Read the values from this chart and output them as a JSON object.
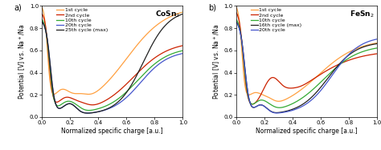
{
  "panel_a": {
    "title": "CoSn$_2$",
    "label": "a)",
    "curves": [
      {
        "name": "1st cycle",
        "color": "#FFA040",
        "lw": 0.9
      },
      {
        "name": "2nd cycle",
        "color": "#CC2200",
        "lw": 0.9
      },
      {
        "name": "10th cycle",
        "color": "#33AA33",
        "lw": 0.9
      },
      {
        "name": "20th cycle",
        "color": "#4455CC",
        "lw": 0.9
      },
      {
        "name": "25th cycle (max)",
        "color": "#222222",
        "lw": 0.9
      }
    ]
  },
  "panel_b": {
    "title": "FeSn$_2$",
    "label": "b)",
    "curves": [
      {
        "name": "1st cycle",
        "color": "#FFA040",
        "lw": 0.9
      },
      {
        "name": "2nd cycle",
        "color": "#CC2200",
        "lw": 0.9
      },
      {
        "name": "10th cycle",
        "color": "#33AA33",
        "lw": 0.9
      },
      {
        "name": "16th cycle (max)",
        "color": "#222222",
        "lw": 0.9
      },
      {
        "name": "20th cycle",
        "color": "#4455CC",
        "lw": 0.9
      }
    ]
  },
  "xlabel": "Normalized specific charge [a.u.]",
  "ylabel": "Potential [V] vs. Na$^+$/Na",
  "xlim": [
    0.0,
    1.0
  ],
  "ylim": [
    0.0,
    1.0
  ],
  "xticks": [
    0.0,
    0.2,
    0.4,
    0.6,
    0.8,
    1.0
  ],
  "yticks": [
    0.0,
    0.2,
    0.4,
    0.6,
    0.8,
    1.0
  ],
  "fontsize_label": 5.5,
  "fontsize_tick": 5.0,
  "fontsize_legend": 4.5,
  "fontsize_title": 6.5,
  "fontsize_panel": 7
}
